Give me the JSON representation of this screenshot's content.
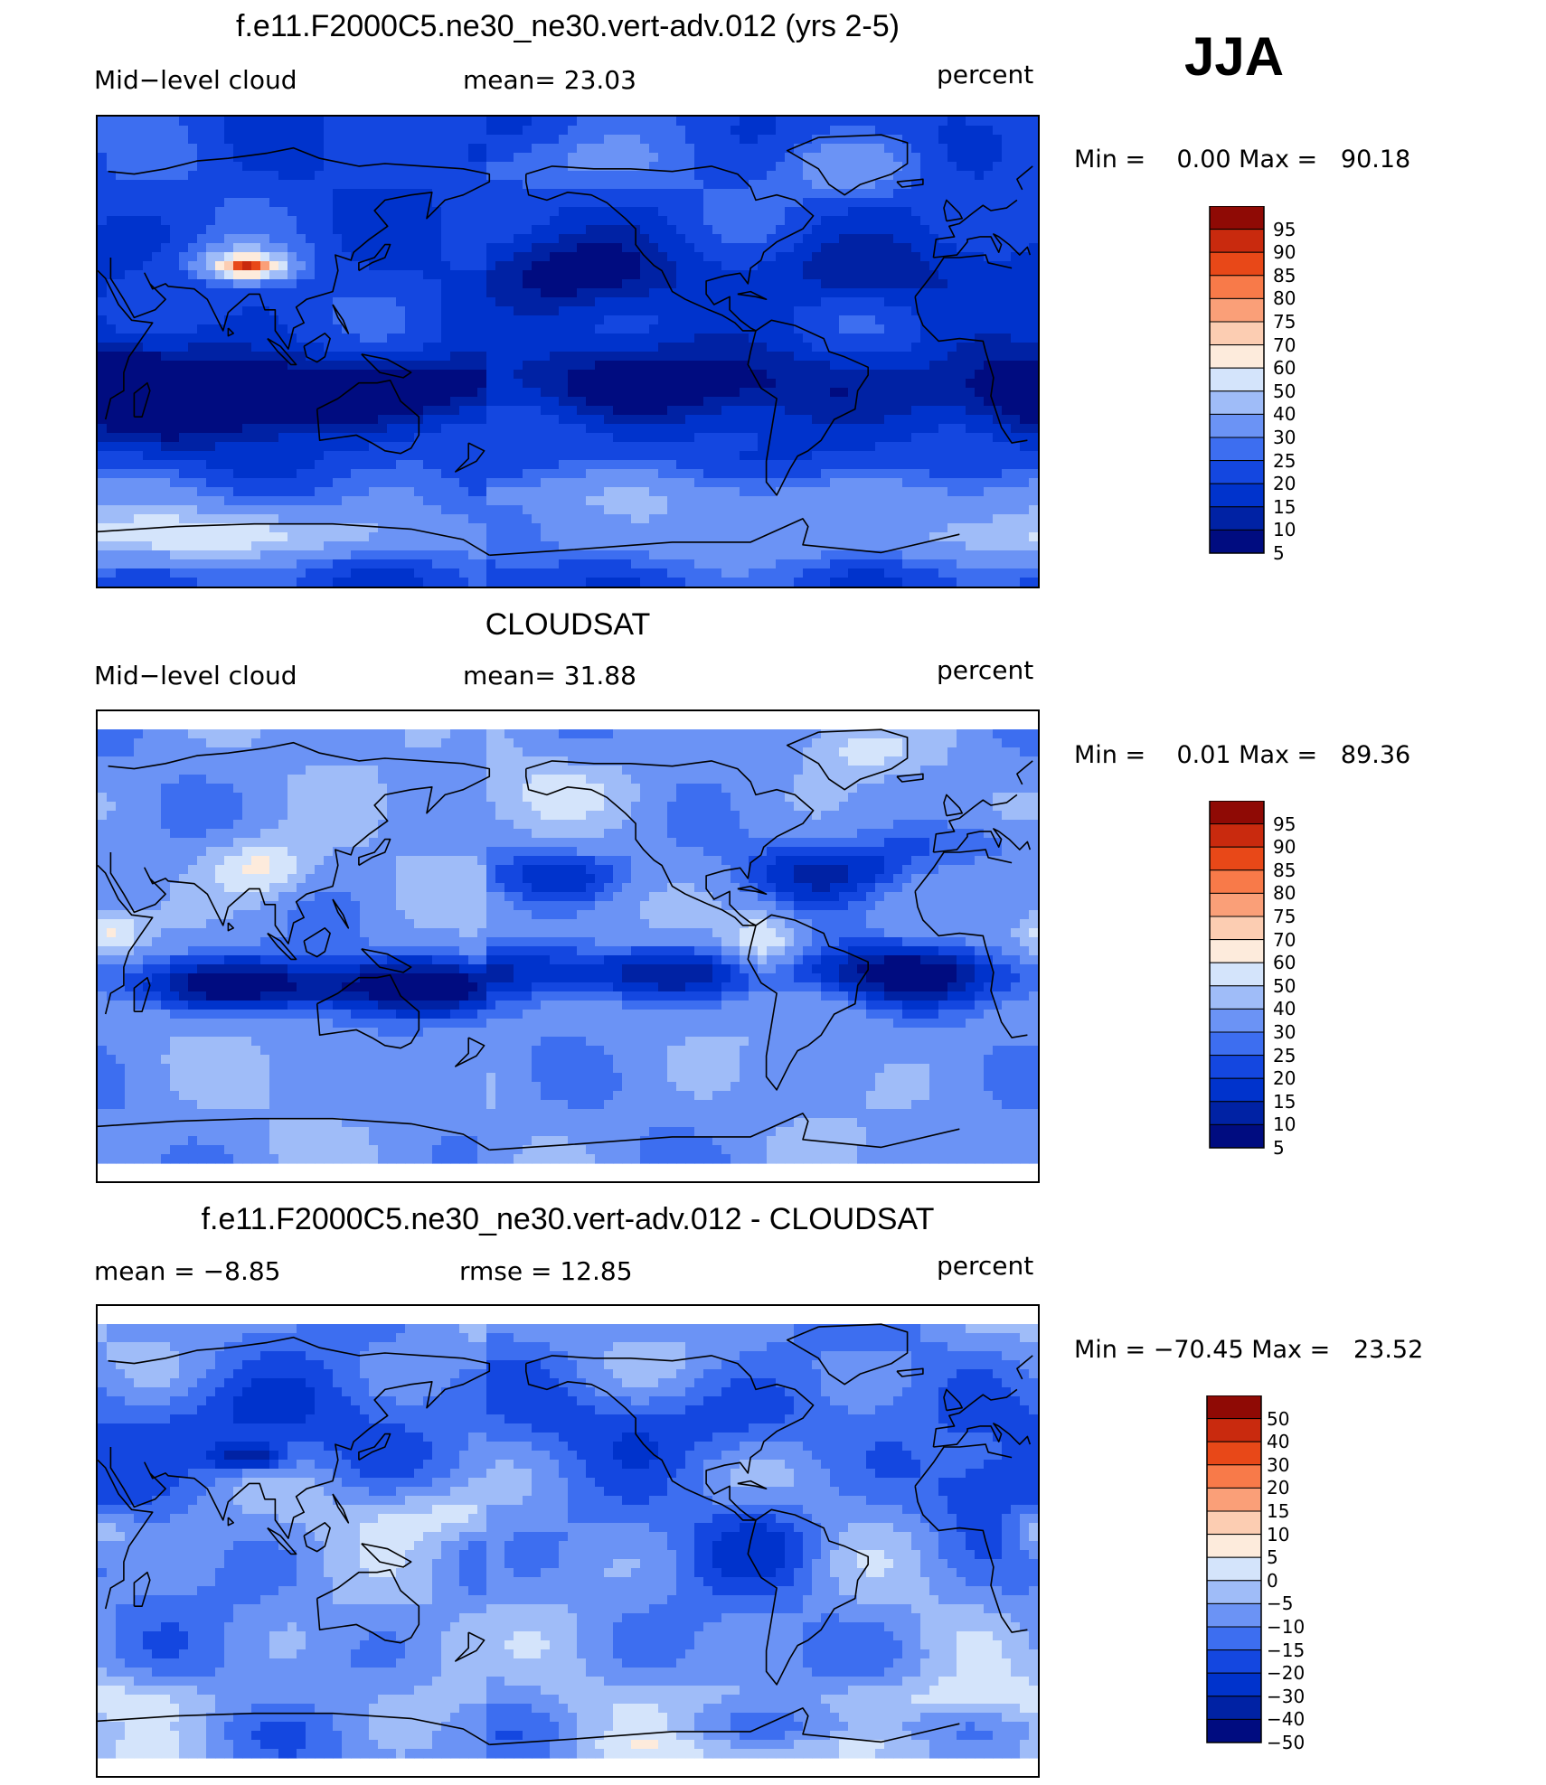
{
  "season_label": "JJA",
  "colors": {
    "cloud_scale": [
      "#000c80",
      "#0022a4",
      "#0033cc",
      "#1447e0",
      "#3d6ef0",
      "#6b93f5",
      "#9fbcf8",
      "#d4e4fb",
      "#fdebdc",
      "#fccdb2",
      "#fa9f78",
      "#f87a49",
      "#e84818",
      "#c92a0e",
      "#8f0a05"
    ],
    "diff_scale": [
      "#000c80",
      "#0022a4",
      "#0033cc",
      "#1447e0",
      "#3d6ef0",
      "#6b93f5",
      "#9fbcf8",
      "#d4e4fb",
      "#fdebdc",
      "#fccdb2",
      "#fa9f78",
      "#f87a49",
      "#e84818",
      "#c92a0e",
      "#8f0a05"
    ]
  },
  "panels": [
    {
      "title": "f.e11.F2000C5.ne30_ne30.vert-adv.012 (yrs 2-5)",
      "left_label": "Mid−level cloud",
      "center_label": "mean=   23.03",
      "right_label": "percent",
      "min_max": "Min =    0.00 Max =   90.18",
      "colorbar_labels": [
        "95",
        "90",
        "85",
        "80",
        "75",
        "70",
        "60",
        "50",
        "40",
        "30",
        "25",
        "20",
        "15",
        "10",
        "5"
      ],
      "field": "model"
    },
    {
      "title": "CLOUDSAT",
      "left_label": "Mid−level cloud",
      "center_label": "mean=   31.88",
      "right_label": "percent",
      "min_max": "Min =    0.01 Max =   89.36",
      "colorbar_labels": [
        "95",
        "90",
        "85",
        "80",
        "75",
        "70",
        "60",
        "50",
        "40",
        "30",
        "25",
        "20",
        "15",
        "10",
        "5"
      ],
      "field": "obs"
    },
    {
      "title": "f.e11.F2000C5.ne30_ne30.vert-adv.012 - CLOUDSAT",
      "left_label": "mean =   −8.85",
      "center_label": "rmse =   12.85",
      "right_label": "percent",
      "min_max": "Min = −70.45 Max =   23.52",
      "colorbar_labels": [
        "50",
        "40",
        "30",
        "20",
        "15",
        "10",
        "5",
        "0",
        "−5",
        "−10",
        "−15",
        "−20",
        "−30",
        "−40",
        "−50"
      ],
      "field": "diff"
    }
  ]
}
